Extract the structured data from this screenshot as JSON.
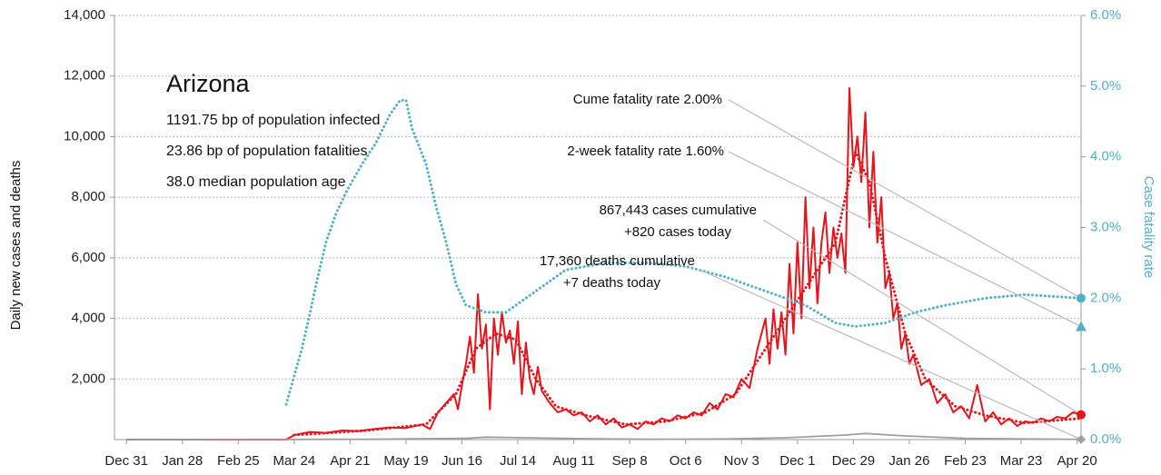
{
  "chart_data": {
    "type": "line",
    "title": "Arizona",
    "subtitle": [
      "1191.75 bp of population infected",
      "23.86 bp of population fatalities",
      "38.0 median population age"
    ],
    "y_label": "Daily new cases and deaths",
    "y2_label": "Case fatality rate",
    "xlim": [
      -6,
      478
    ],
    "xticks": [
      {
        "value": 0,
        "label": "Dec 31"
      },
      {
        "value": 28,
        "label": "Jan 28"
      },
      {
        "value": 56,
        "label": "Feb 25"
      },
      {
        "value": 84,
        "label": "Mar 24"
      },
      {
        "value": 112,
        "label": "Apr 21"
      },
      {
        "value": 140,
        "label": "May 19"
      },
      {
        "value": 168,
        "label": "Jun 16"
      },
      {
        "value": 196,
        "label": "Jul 14"
      },
      {
        "value": 224,
        "label": "Aug 11"
      },
      {
        "value": 252,
        "label": "Sep 8"
      },
      {
        "value": 280,
        "label": "Oct 6"
      },
      {
        "value": 308,
        "label": "Nov 3"
      },
      {
        "value": 336,
        "label": "Dec 1"
      },
      {
        "value": 364,
        "label": "Dec 29"
      },
      {
        "value": 392,
        "label": "Jan 26"
      },
      {
        "value": 420,
        "label": "Feb 23"
      },
      {
        "value": 448,
        "label": "Mar 23"
      },
      {
        "value": 476,
        "label": "Apr 20"
      }
    ],
    "ylim": [
      0,
      14000
    ],
    "yticks": [
      {
        "value": 2000,
        "label": "2,000"
      },
      {
        "value": 4000,
        "label": "4,000"
      },
      {
        "value": 6000,
        "label": "6,000"
      },
      {
        "value": 8000,
        "label": "8,000"
      },
      {
        "value": 10000,
        "label": "10,000"
      },
      {
        "value": 12000,
        "label": "12,000"
      },
      {
        "value": 14000,
        "label": "14,000"
      }
    ],
    "y2lim": [
      0,
      6
    ],
    "y2ticks": [
      {
        "value": 0,
        "label": "0.0%"
      },
      {
        "value": 1,
        "label": "1.0%"
      },
      {
        "value": 2,
        "label": "2.0%"
      },
      {
        "value": 3,
        "label": "3.0%"
      },
      {
        "value": 4,
        "label": "4.0%"
      },
      {
        "value": 5,
        "label": "5.0%"
      },
      {
        "value": 6,
        "label": "6.0%"
      }
    ],
    "grid": true,
    "series": [
      {
        "color": "#e8141b",
        "style": "solid",
        "x": [
          0,
          40,
          80,
          84,
          92,
          100,
          108,
          116,
          124,
          132,
          140,
          148,
          152,
          156,
          160,
          164,
          166,
          168,
          170,
          172,
          174,
          176,
          178,
          180,
          182,
          184,
          186,
          188,
          190,
          192,
          194,
          196,
          198,
          200,
          202,
          204,
          206,
          208,
          212,
          216,
          220,
          224,
          228,
          232,
          236,
          240,
          244,
          248,
          252,
          256,
          260,
          264,
          268,
          272,
          276,
          280,
          284,
          288,
          292,
          296,
          300,
          304,
          308,
          312,
          316,
          320,
          322,
          324,
          326,
          328,
          330,
          332,
          334,
          336,
          338,
          340,
          342,
          344,
          346,
          348,
          350,
          352,
          354,
          356,
          358,
          360,
          362,
          364,
          366,
          368,
          370,
          372,
          374,
          376,
          378,
          380,
          382,
          384,
          386,
          388,
          390,
          392,
          394,
          398,
          402,
          406,
          410,
          414,
          418,
          422,
          426,
          430,
          434,
          438,
          442,
          446,
          450,
          454,
          458,
          462,
          466,
          470,
          474,
          478
        ],
        "values": [
          0,
          0,
          0,
          150,
          250,
          220,
          300,
          280,
          350,
          400,
          380,
          500,
          350,
          900,
          1200,
          1500,
          1000,
          1800,
          2500,
          3400,
          2200,
          4800,
          3000,
          3800,
          1000,
          4000,
          2800,
          4200,
          3200,
          3600,
          2500,
          3900,
          1500,
          3200,
          2000,
          1500,
          2400,
          1600,
          1200,
          900,
          1000,
          800,
          900,
          600,
          800,
          500,
          700,
          400,
          500,
          350,
          600,
          500,
          700,
          600,
          800,
          700,
          900,
          800,
          1200,
          1000,
          1500,
          1400,
          2000,
          1700,
          3000,
          4000,
          2500,
          4300,
          3000,
          4200,
          2800,
          5800,
          3500,
          6500,
          4000,
          8000,
          5000,
          7000,
          4500,
          6500,
          7500,
          5500,
          7000,
          6000,
          6800,
          5500,
          11600,
          9000,
          10000,
          8500,
          10800,
          7000,
          9500,
          6500,
          8000,
          5000,
          5500,
          4000,
          4500,
          3000,
          3500,
          2500,
          2800,
          1800,
          2000,
          1200,
          1500,
          900,
          1100,
          700,
          1800,
          600,
          900,
          500,
          700,
          450,
          600,
          550,
          700,
          600,
          750,
          700,
          900,
          820
        ]
      },
      {
        "color": "#e8141b",
        "style": "dotted",
        "x": [
          84,
          120,
          150,
          165,
          175,
          185,
          195,
          205,
          215,
          230,
          250,
          270,
          290,
          305,
          320,
          335,
          345,
          355,
          365,
          372,
          380,
          390,
          400,
          415,
          430,
          450,
          478
        ],
        "values": [
          150,
          300,
          500,
          1500,
          3000,
          3500,
          3300,
          2000,
          1100,
          800,
          500,
          600,
          900,
          1500,
          3000,
          4500,
          5500,
          6500,
          9500,
          8500,
          6000,
          3500,
          2000,
          1100,
          800,
          550,
          700
        ]
      },
      {
        "color": "#a0a0a0",
        "style": "solid",
        "x": [
          0,
          84,
          120,
          170,
          180,
          200,
          230,
          260,
          300,
          330,
          360,
          370,
          390,
          420,
          450,
          478
        ],
        "values": [
          0,
          5,
          10,
          40,
          80,
          60,
          30,
          10,
          20,
          60,
          150,
          200,
          120,
          40,
          20,
          7
        ]
      },
      {
        "color": "#4fb3c4",
        "style": "dotted",
        "axis": "y2",
        "x": [
          80,
          84,
          88,
          92,
          95,
          100,
          105,
          110,
          118,
          125,
          132,
          137,
          140,
          143,
          150,
          155,
          160,
          165,
          170,
          180,
          190,
          200,
          210,
          220,
          240,
          260,
          280,
          300,
          320,
          340,
          355,
          365,
          380,
          395,
          410,
          430,
          450,
          478
        ],
        "values": [
          0.5,
          0.9,
          1.3,
          1.8,
          2.2,
          2.8,
          3.2,
          3.5,
          3.9,
          4.2,
          4.6,
          4.8,
          4.8,
          4.4,
          3.9,
          3.3,
          2.8,
          2.2,
          1.9,
          1.8,
          1.8,
          2.0,
          2.2,
          2.4,
          2.5,
          2.5,
          2.45,
          2.3,
          2.1,
          1.9,
          1.65,
          1.6,
          1.65,
          1.8,
          1.9,
          2.0,
          2.05,
          2.0
        ]
      }
    ],
    "markers": [
      {
        "label": [
          "Cume fatality rate 2.00%"
        ],
        "value": 2.0,
        "axis": "y2",
        "color": "#4fb3c4",
        "shape": "circle"
      },
      {
        "label": [
          "2-week fatality rate 1.60%"
        ],
        "value": 1.6,
        "axis": "y2",
        "color": "#4fb3c4",
        "shape": "triangle"
      },
      {
        "label": [
          "867,443 cases cumulative",
          "+820 cases today"
        ],
        "value": 820,
        "color": "#e8141b",
        "shape": "circle"
      },
      {
        "label": [
          "17,360 deaths cumulative",
          "+7 deaths today"
        ],
        "value": 7,
        "color": "#a0a0a0",
        "shape": "diamond"
      }
    ]
  }
}
